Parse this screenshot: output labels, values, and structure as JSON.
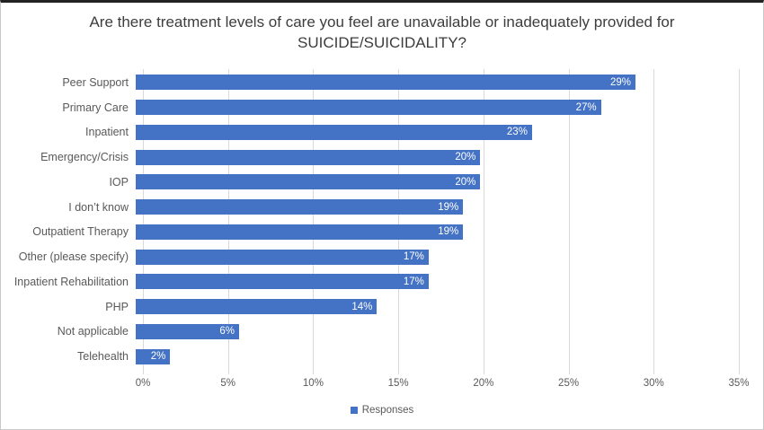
{
  "chart_data": {
    "type": "bar",
    "orientation": "horizontal",
    "title": "Are there treatment levels of care you feel are unavailable or inadequately provided for SUICIDE/SUICIDALITY?",
    "categories": [
      "Peer Support",
      "Primary Care",
      "Inpatient",
      "Emergency/Crisis",
      "IOP",
      "I don’t know",
      "Outpatient Therapy",
      "Other (please specify)",
      "Inpatient Rehabilitation",
      "PHP",
      "Not applicable",
      "Telehealth"
    ],
    "values": [
      29,
      27,
      23,
      20,
      20,
      19,
      19,
      17,
      17,
      14,
      6,
      2
    ],
    "value_labels": [
      "29%",
      "27%",
      "23%",
      "20%",
      "20%",
      "19%",
      "19%",
      "17%",
      "17%",
      "14%",
      "6%",
      "2%"
    ],
    "xlabel": "",
    "ylabel": "",
    "xlim": [
      0,
      35
    ],
    "x_tick_step": 5,
    "x_tick_labels": [
      "0%",
      "5%",
      "10%",
      "15%",
      "20%",
      "25%",
      "30%",
      "35%"
    ],
    "grid": true,
    "legend_position": "bottom",
    "legend": [
      "Responses"
    ],
    "colors": {
      "bar": "#4472C4",
      "gridline": "#D9D9D9",
      "title_text": "#3D3D3D",
      "axis_text": "#595959",
      "value_label_text": "#FFFFFF"
    }
  }
}
